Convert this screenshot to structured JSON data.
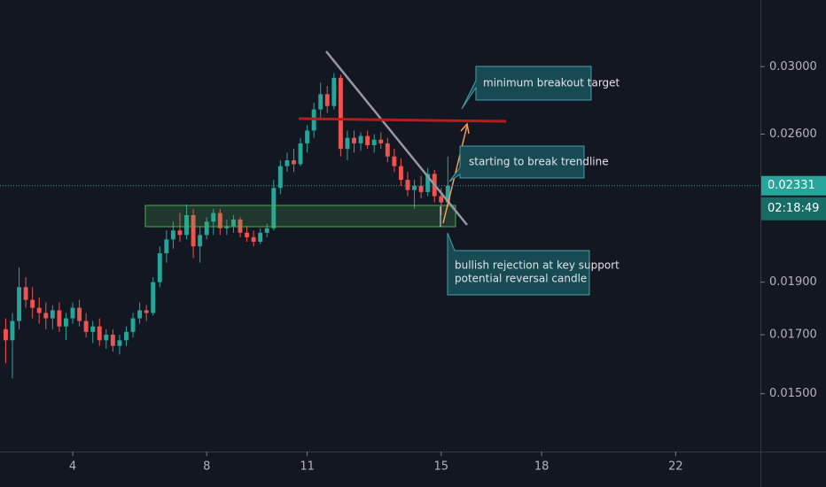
{
  "chart_data": {
    "type": "candlestick",
    "x": [
      2.0,
      2.2,
      2.4,
      2.6,
      2.8,
      3.0,
      3.2,
      3.4,
      3.6,
      3.8,
      4.0,
      4.2,
      4.4,
      4.6,
      4.8,
      5.0,
      5.2,
      5.4,
      5.6,
      5.8,
      6.0,
      6.2,
      6.4,
      6.6,
      6.8,
      7.0,
      7.2,
      7.4,
      7.6,
      7.8,
      8.0,
      8.2,
      8.4,
      8.6,
      8.8,
      9.0,
      9.2,
      9.4,
      9.6,
      9.8,
      10.0,
      10.2,
      10.4,
      10.6,
      10.8,
      11.0,
      11.2,
      11.4,
      11.6,
      11.8,
      12.0,
      12.2,
      12.4,
      12.6,
      12.8,
      13.0,
      13.2,
      13.4,
      13.6,
      13.8,
      14.0,
      14.2,
      14.4,
      14.6,
      14.8,
      15.0,
      15.2
    ],
    "open": [
      0.0172,
      0.0168,
      0.0175,
      0.0188,
      0.0183,
      0.018,
      0.0178,
      0.0176,
      0.0179,
      0.0173,
      0.0176,
      0.018,
      0.0175,
      0.0171,
      0.0173,
      0.0168,
      0.017,
      0.0166,
      0.0168,
      0.0171,
      0.0176,
      0.0179,
      0.0178,
      0.019,
      0.0202,
      0.0208,
      0.0212,
      0.021,
      0.0219,
      0.0205,
      0.021,
      0.0216,
      0.022,
      0.0213,
      0.0214,
      0.0217,
      0.0211,
      0.0209,
      0.0207,
      0.0211,
      0.0213,
      0.0232,
      0.0243,
      0.0246,
      0.0244,
      0.0255,
      0.0262,
      0.0274,
      0.0283,
      0.0276,
      0.0293,
      0.0252,
      0.0258,
      0.0255,
      0.0259,
      0.0254,
      0.0257,
      0.0255,
      0.0248,
      0.0243,
      0.0236,
      0.0231,
      0.0233,
      0.023,
      0.0239,
      0.0228,
      0.0225
    ],
    "high": [
      0.0176,
      0.0178,
      0.0196,
      0.0192,
      0.0188,
      0.0184,
      0.0182,
      0.0181,
      0.0182,
      0.0178,
      0.0182,
      0.0183,
      0.0178,
      0.0175,
      0.0176,
      0.0172,
      0.0172,
      0.017,
      0.0173,
      0.0178,
      0.0182,
      0.0181,
      0.0192,
      0.0205,
      0.0212,
      0.0216,
      0.022,
      0.0224,
      0.0222,
      0.0214,
      0.0218,
      0.0222,
      0.0222,
      0.0217,
      0.0219,
      0.0218,
      0.0214,
      0.0212,
      0.0213,
      0.0215,
      0.0236,
      0.0246,
      0.025,
      0.0252,
      0.0258,
      0.0265,
      0.0278,
      0.029,
      0.0288,
      0.0296,
      0.0295,
      0.0262,
      0.0262,
      0.0261,
      0.0262,
      0.026,
      0.0261,
      0.0258,
      0.0252,
      0.0247,
      0.024,
      0.0236,
      0.0238,
      0.0242,
      0.0241,
      0.0232,
      0.0248
    ],
    "low": [
      0.016,
      0.0155,
      0.0172,
      0.018,
      0.0176,
      0.0174,
      0.0172,
      0.0172,
      0.0171,
      0.0168,
      0.0174,
      0.0173,
      0.0169,
      0.0167,
      0.0166,
      0.0165,
      0.0164,
      0.0163,
      0.0166,
      0.0169,
      0.0174,
      0.0175,
      0.0177,
      0.0188,
      0.0198,
      0.0204,
      0.0207,
      0.0208,
      0.02,
      0.0198,
      0.0208,
      0.021,
      0.021,
      0.021,
      0.0211,
      0.0209,
      0.0207,
      0.0205,
      0.0206,
      0.0209,
      0.0212,
      0.0229,
      0.024,
      0.024,
      0.0243,
      0.025,
      0.0258,
      0.0268,
      0.0272,
      0.0274,
      0.0248,
      0.0246,
      0.025,
      0.0251,
      0.0252,
      0.025,
      0.0252,
      0.0245,
      0.024,
      0.0233,
      0.0228,
      0.0222,
      0.0227,
      0.0228,
      0.0225,
      0.0219,
      0.0223
    ],
    "close": [
      0.0168,
      0.0175,
      0.0188,
      0.0183,
      0.018,
      0.0178,
      0.0176,
      0.0179,
      0.0173,
      0.0176,
      0.018,
      0.0175,
      0.0171,
      0.0173,
      0.0168,
      0.017,
      0.0166,
      0.0168,
      0.0171,
      0.0176,
      0.0179,
      0.0178,
      0.019,
      0.0202,
      0.0208,
      0.0212,
      0.021,
      0.0219,
      0.0205,
      0.021,
      0.0216,
      0.022,
      0.0213,
      0.0214,
      0.0217,
      0.0211,
      0.0209,
      0.0207,
      0.0211,
      0.0213,
      0.0232,
      0.0243,
      0.0246,
      0.0244,
      0.0255,
      0.0262,
      0.0274,
      0.0283,
      0.0276,
      0.0293,
      0.0252,
      0.0258,
      0.0255,
      0.0259,
      0.0254,
      0.0257,
      0.0255,
      0.0248,
      0.0243,
      0.0236,
      0.0231,
      0.0233,
      0.023,
      0.0239,
      0.0228,
      0.0225,
      0.02331
    ],
    "up_color": "#26a69a",
    "down_color": "#ef5350",
    "log_scale": true,
    "xlim": [
      1.83,
      24.53
    ],
    "xticks": [
      4,
      8,
      11,
      15,
      18,
      22
    ],
    "ylim": [
      0.01327,
      0.03455
    ],
    "yticks": [
      {
        "value": 0.015,
        "label": "0.01500"
      },
      {
        "value": 0.017,
        "label": "0.01700"
      },
      {
        "value": 0.019,
        "label": "0.01900"
      },
      {
        "value": 0.026,
        "label": "0.02600"
      },
      {
        "value": 0.03,
        "label": "0.03000"
      }
    ],
    "last_price": 0.02331,
    "countdown": "02:18:49",
    "annotations": [
      "minimum breakout target",
      "starting to break trendline",
      [
        "bullish rejection at key support",
        "potential reversal candle"
      ]
    ]
  }
}
